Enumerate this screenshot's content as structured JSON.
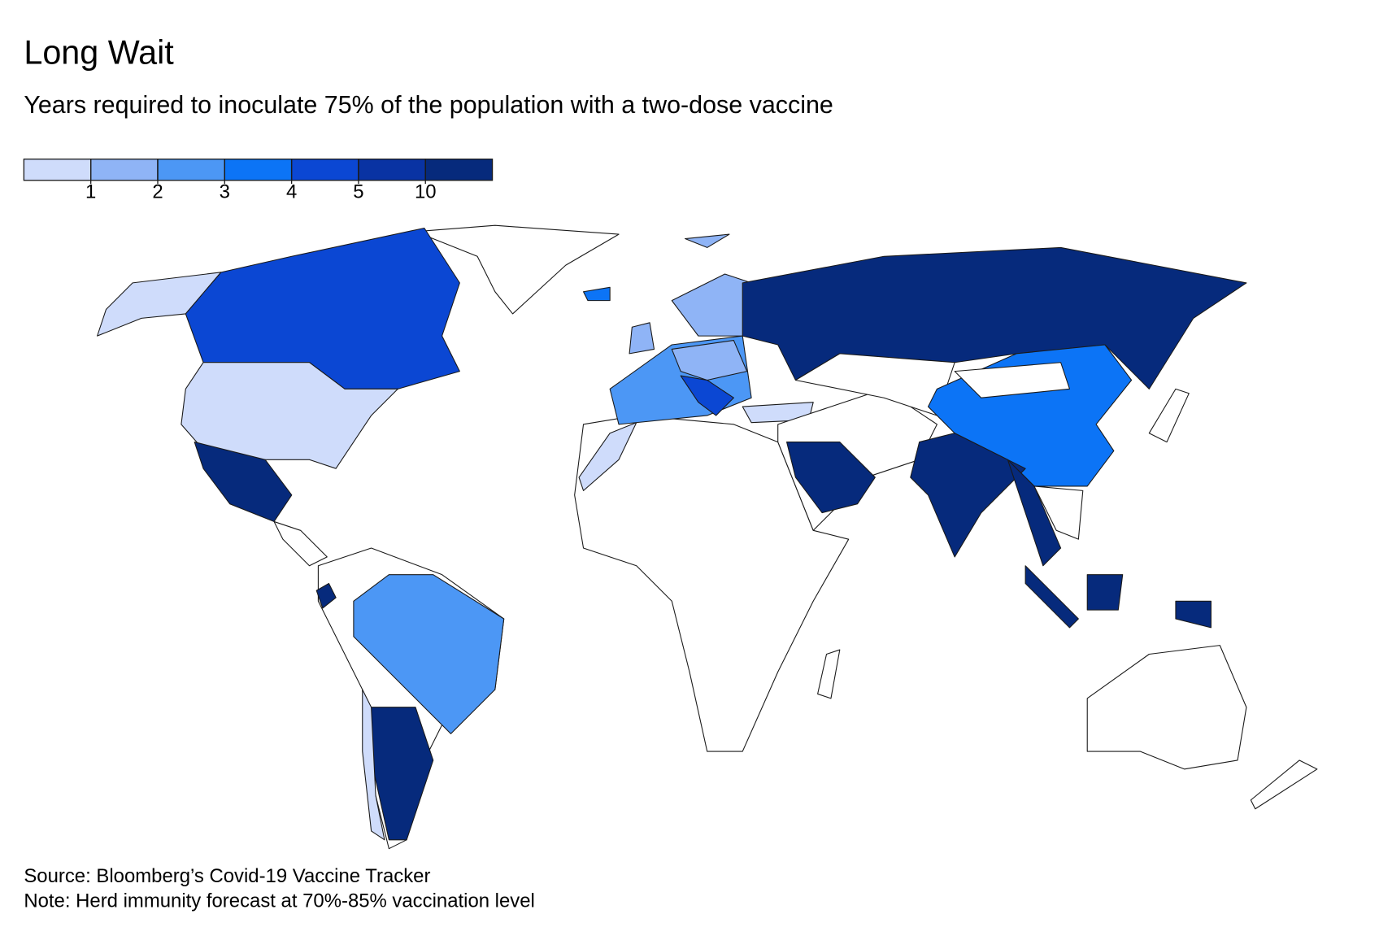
{
  "title": "Long Wait",
  "subtitle": "Years required to inoculate 75% of the population with a two-dose vaccine",
  "legend": {
    "colors": [
      "#cfdcfb",
      "#8fb4f6",
      "#4c97f5",
      "#0c74f6",
      "#0b47d3",
      "#0933a3",
      "#062a7c"
    ],
    "ticks": [
      1,
      2,
      3,
      4,
      5,
      10
    ]
  },
  "source": "Source: Bloomberg’s Covid-19 Vaccine Tracker",
  "note": "Note: Herd immunity forecast at 70%-85% vaccination level"
}
